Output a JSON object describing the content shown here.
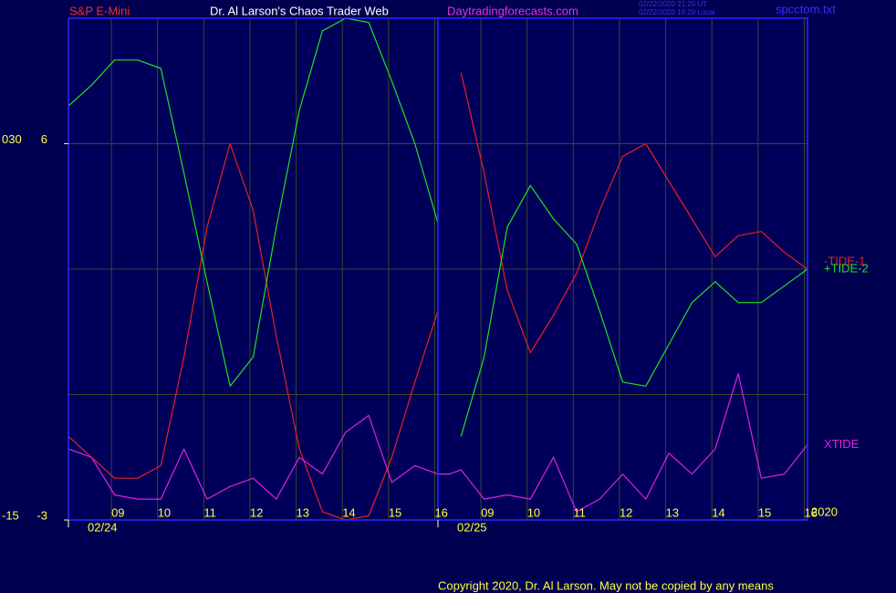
{
  "chart_data": {
    "type": "line",
    "title": "Dr. Al Larson's Chaos Trader Web",
    "instrument": "S&P E-Mini",
    "website": "Daytradingforecasts.com",
    "timestamp_ut": "02/22/2020 21:20 UT",
    "timestamp_local": "02/22/2020 16:20 Local",
    "file": "spcctom.txt",
    "year": "2020",
    "dates": [
      "02/24",
      "02/25"
    ],
    "copyright": "Copyright 2020, Dr. Al Larson. May not be copied by any means",
    "x": [
      0,
      0.5,
      1,
      1.5,
      2,
      2.5,
      3,
      3.5,
      4,
      4.5,
      5,
      5.5,
      6,
      6.5,
      7,
      7.5,
      8,
      8.25,
      8.5,
      9,
      9.5,
      10,
      10.5,
      11,
      11.5,
      12,
      12.5,
      13,
      13.5,
      14,
      14.5,
      15,
      15.5,
      16
    ],
    "xlim": [
      0,
      16
    ],
    "xticks": [
      {
        "value": 0.93,
        "label": "09"
      },
      {
        "value": 1.93,
        "label": "10"
      },
      {
        "value": 2.93,
        "label": "11"
      },
      {
        "value": 3.93,
        "label": "12"
      },
      {
        "value": 4.93,
        "label": "13"
      },
      {
        "value": 5.93,
        "label": "14"
      },
      {
        "value": 6.93,
        "label": "15"
      },
      {
        "value": 7.93,
        "label": "16"
      },
      {
        "value": 8.93,
        "label": "09"
      },
      {
        "value": 9.93,
        "label": "10"
      },
      {
        "value": 10.93,
        "label": "11"
      },
      {
        "value": 11.93,
        "label": "12"
      },
      {
        "value": 12.93,
        "label": "13"
      },
      {
        "value": 13.93,
        "label": "14"
      },
      {
        "value": 14.93,
        "label": "15"
      },
      {
        "value": 15.93,
        "label": "16"
      }
    ],
    "ylim": [
      -3,
      9
    ],
    "yticks": [
      6,
      -3
    ],
    "ygrid": [
      0,
      3,
      6
    ],
    "y2lim": [
      -15,
      45
    ],
    "y2ticks": [
      {
        "value": 30,
        "label": "030"
      },
      -15
    ],
    "grid": true,
    "series": [
      {
        "name": "-TIDE-1",
        "color": "#e82020",
        "values": [
          -1.0,
          -1.5,
          -2.0,
          -2.0,
          -1.7,
          0.9,
          4.0,
          6.0,
          4.4,
          1.4,
          -1.3,
          -2.8,
          -3.0,
          -2.9,
          -1.5,
          0.3,
          2.0,
          null,
          7.7,
          5.3,
          2.5,
          1.0,
          1.9,
          2.9,
          4.4,
          5.7,
          6.0,
          5.1,
          4.2,
          3.3,
          3.8,
          3.9,
          3.4,
          3.0
        ]
      },
      {
        "name": "+TIDE-2",
        "color": "#20e020",
        "values": [
          6.9,
          7.4,
          8.0,
          8.0,
          7.8,
          5.3,
          2.7,
          0.2,
          0.9,
          4.0,
          6.8,
          8.7,
          9.0,
          8.9,
          7.5,
          6.0,
          4.1,
          null,
          -1.0,
          0.9,
          4.0,
          5.0,
          4.2,
          3.6,
          2.0,
          0.3,
          0.2,
          1.2,
          2.2,
          2.7,
          2.2,
          2.2,
          2.6,
          3.0
        ]
      },
      {
        "name": "XTIDE",
        "color": "#e020e0",
        "values": [
          -1.3,
          -1.5,
          -2.4,
          -2.5,
          -2.5,
          -1.3,
          -2.5,
          -2.2,
          -2.0,
          -2.5,
          -1.5,
          -1.9,
          -0.9,
          -0.5,
          -2.1,
          -1.7,
          -1.9,
          -1.9,
          -1.8,
          -2.5,
          -2.4,
          -2.5,
          -1.5,
          -2.8,
          -2.5,
          -1.9,
          -2.5,
          -1.4,
          -1.9,
          -1.3,
          0.5,
          -2.0,
          -1.9,
          -1.2
        ]
      }
    ]
  }
}
